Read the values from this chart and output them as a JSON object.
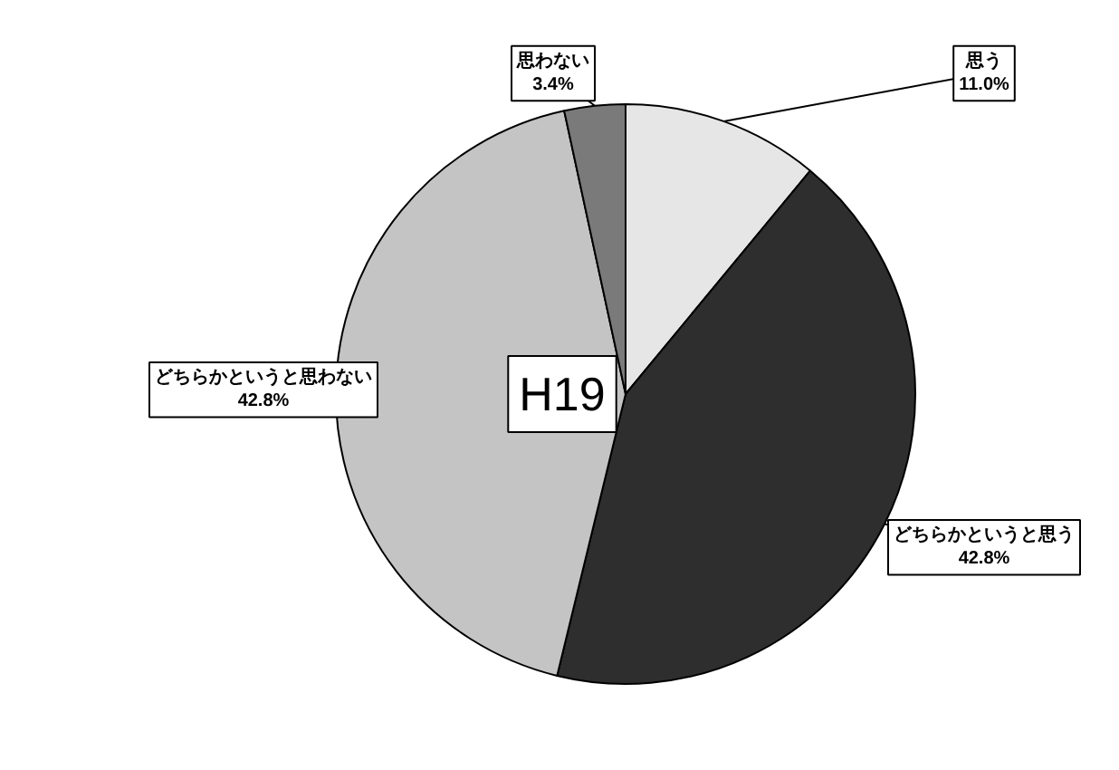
{
  "chart_data": {
    "type": "pie",
    "title": "H19",
    "categories": [
      "思う",
      "どちらかというと思う",
      "どちらかというと思わない",
      "思わない"
    ],
    "values": [
      11.0,
      42.8,
      42.8,
      3.4
    ],
    "value_labels": [
      "11.0%",
      "42.8%",
      "42.8%",
      "3.4%"
    ],
    "colors": [
      "#e6e6e6",
      "#2e2e2e",
      "#c4c4c4",
      "#7a7a7a"
    ]
  }
}
